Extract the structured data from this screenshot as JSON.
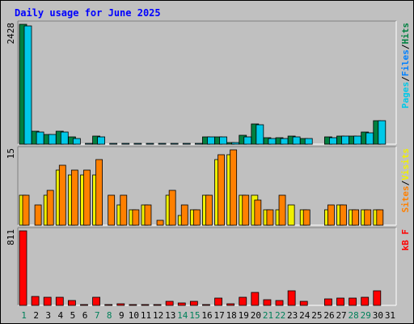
{
  "chart_data": [
    {
      "type": "bar",
      "title": "Daily usage for June 2025",
      "categories": [
        "1",
        "2",
        "3",
        "4",
        "5",
        "6",
        "7",
        "8",
        "9",
        "10",
        "11",
        "12",
        "13",
        "14",
        "15",
        "16",
        "17",
        "18",
        "19",
        "20",
        "21",
        "22",
        "23",
        "24",
        "25",
        "26",
        "27",
        "28",
        "29",
        "30",
        "31"
      ],
      "weekend_days": [
        "1",
        "7",
        "8",
        "14",
        "15",
        "21",
        "22",
        "28",
        "29"
      ],
      "panel_max": "2428",
      "ylim": [
        0,
        2428
      ],
      "series": [
        {
          "name": "Hits",
          "color": "#008040",
          "values": [
            2428,
            260,
            200,
            260,
            140,
            0,
            160,
            0,
            0,
            0,
            0,
            0,
            0,
            0,
            0,
            150,
            150,
            30,
            180,
            410,
            130,
            130,
            160,
            120,
            0,
            150,
            170,
            170,
            240,
            480,
            0
          ]
        },
        {
          "name": "Files",
          "color": "#0080ff",
          "values": [
            0,
            0,
            0,
            0,
            0,
            0,
            0,
            0,
            0,
            0,
            0,
            0,
            0,
            0,
            0,
            0,
            0,
            0,
            0,
            0,
            0,
            0,
            0,
            0,
            0,
            0,
            0,
            0,
            0,
            0,
            0
          ]
        },
        {
          "name": "Pages",
          "color": "#00c8e8",
          "values": [
            2400,
            250,
            190,
            250,
            120,
            20,
            150,
            20,
            20,
            20,
            20,
            20,
            20,
            20,
            20,
            140,
            140,
            25,
            140,
            400,
            120,
            120,
            150,
            110,
            0,
            130,
            160,
            160,
            230,
            470,
            0
          ]
        }
      ],
      "legend": [
        "Pages",
        "Files",
        "Hits"
      ],
      "legend_separator": "/"
    },
    {
      "type": "bar",
      "panel_max": "15",
      "ylim": [
        0,
        15
      ],
      "series": [
        {
          "name": "Visits",
          "color": "#f0f000",
          "values": [
            6,
            0,
            6,
            11,
            10,
            10,
            10,
            0,
            4,
            3,
            4,
            0,
            6,
            2,
            3,
            6,
            13,
            14,
            6,
            6,
            3,
            3,
            4,
            3,
            0,
            3,
            4,
            3,
            3,
            3,
            0
          ]
        },
        {
          "name": "Sites",
          "color": "#ff8000",
          "values": [
            6,
            4,
            7,
            12,
            11,
            11,
            13,
            6,
            6,
            3,
            4,
            1,
            7,
            4,
            3,
            6,
            14,
            15,
            6,
            5,
            3,
            6,
            0,
            3,
            0,
            4,
            4,
            3,
            3,
            3,
            0
          ]
        }
      ],
      "legend": [
        "Sites",
        "Visits"
      ],
      "legend_separator": "/"
    },
    {
      "type": "bar",
      "panel_max": "811",
      "ylim": [
        0,
        811
      ],
      "series": [
        {
          "name": "kB F",
          "color": "#ff0000",
          "values": [
            811,
            95,
            85,
            90,
            55,
            5,
            85,
            5,
            15,
            10,
            5,
            5,
            40,
            25,
            40,
            10,
            80,
            20,
            85,
            140,
            60,
            55,
            160,
            40,
            0,
            70,
            75,
            75,
            90,
            160,
            0
          ]
        }
      ],
      "legend": [
        "kB F"
      ],
      "legend_separator": ""
    }
  ]
}
